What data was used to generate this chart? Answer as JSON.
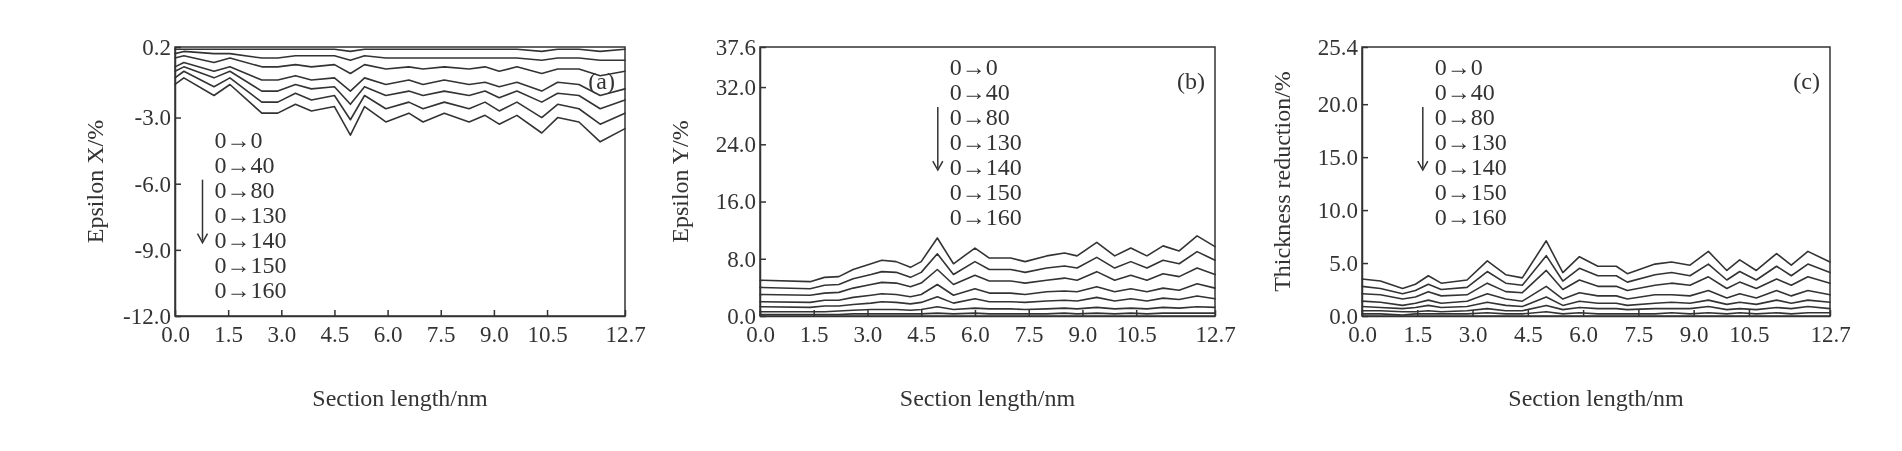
{
  "chart_data": [
    {
      "type": "line",
      "xlabel": "Section length/nm",
      "ylabel": "Epsilon X/%",
      "annotations": [
        "(a)",
        "0→0",
        "0→40",
        "0→80",
        "0→130",
        "0→140",
        "0→150",
        "0→160"
      ],
      "line_style": "solid",
      "x": [
        0,
        0.25,
        1.1,
        1.55,
        2.45,
        2.9,
        3.4,
        3.85,
        4.5,
        4.95,
        5.35,
        5.95,
        6.6,
        7.0,
        7.6,
        8.3,
        8.75,
        9.15,
        9.65,
        10.35,
        10.8,
        11.4,
        12.0,
        12.7
      ],
      "xlim": [
        0,
        12.7
      ],
      "xticks": [
        {
          "value": 0,
          "label": "0.0"
        },
        1.5,
        {
          "value": 3,
          "label": "3.0"
        },
        4.5,
        {
          "value": 6,
          "label": "6.0"
        },
        7.5,
        {
          "value": 9,
          "label": "9.0"
        },
        10.5,
        12.7
      ],
      "ylim": [
        -12,
        0.2
      ],
      "yticks": [
        0.2,
        {
          "value": -3,
          "label": "-3.0"
        },
        {
          "value": -6,
          "label": "-6.0"
        },
        {
          "value": -9,
          "label": "-9.0"
        },
        {
          "value": -12,
          "label": "-12.0"
        }
      ],
      "series": [
        {
          "color": "#333333",
          "values": [
            0.1,
            0.1,
            0.1,
            0.1,
            0.1,
            0.1,
            0.1,
            0.1,
            0.1,
            0.0,
            0.1,
            0.1,
            0.1,
            0.1,
            0.1,
            0.1,
            0.1,
            0.1,
            0.1,
            0.0,
            0.1,
            0.1,
            0.0,
            0.1
          ]
        },
        {
          "color": "#333333",
          "values": [
            -0.1,
            0.0,
            -0.1,
            -0.1,
            -0.3,
            -0.3,
            -0.2,
            -0.2,
            -0.2,
            -0.4,
            -0.2,
            -0.3,
            -0.3,
            -0.3,
            -0.3,
            -0.3,
            -0.3,
            -0.3,
            -0.3,
            -0.4,
            -0.3,
            -0.3,
            -0.4,
            -0.4
          ]
        },
        {
          "color": "#333333",
          "values": [
            -0.3,
            -0.2,
            -0.5,
            -0.3,
            -0.7,
            -0.7,
            -0.6,
            -0.7,
            -0.6,
            -1.0,
            -0.6,
            -0.8,
            -0.7,
            -0.8,
            -0.7,
            -0.8,
            -0.7,
            -0.9,
            -0.7,
            -1.0,
            -0.8,
            -0.8,
            -1.1,
            -0.9
          ]
        },
        {
          "color": "#333333",
          "values": [
            -0.7,
            -0.5,
            -0.9,
            -0.7,
            -1.3,
            -1.3,
            -1.1,
            -1.3,
            -1.2,
            -1.8,
            -1.2,
            -1.5,
            -1.3,
            -1.5,
            -1.3,
            -1.5,
            -1.4,
            -1.6,
            -1.4,
            -1.8,
            -1.4,
            -1.5,
            -2.0,
            -1.7
          ]
        },
        {
          "color": "#333333",
          "values": [
            -0.9,
            -0.7,
            -1.2,
            -0.9,
            -1.8,
            -1.8,
            -1.5,
            -1.7,
            -1.6,
            -2.4,
            -1.6,
            -2.0,
            -1.8,
            -2.0,
            -1.8,
            -2.0,
            -1.8,
            -2.1,
            -1.8,
            -2.3,
            -1.9,
            -2.0,
            -2.6,
            -2.2
          ]
        },
        {
          "color": "#333333",
          "values": [
            -1.2,
            -0.9,
            -1.6,
            -1.2,
            -2.3,
            -2.3,
            -1.9,
            -2.2,
            -2.0,
            -3.1,
            -2.0,
            -2.6,
            -2.3,
            -2.6,
            -2.3,
            -2.6,
            -2.3,
            -2.7,
            -2.3,
            -3.0,
            -2.4,
            -2.6,
            -3.3,
            -2.8
          ]
        },
        {
          "color": "#333333",
          "values": [
            -1.5,
            -1.2,
            -2.0,
            -1.5,
            -2.8,
            -2.8,
            -2.4,
            -2.7,
            -2.5,
            -3.8,
            -2.5,
            -3.2,
            -2.8,
            -3.2,
            -2.8,
            -3.2,
            -2.9,
            -3.3,
            -2.9,
            -3.7,
            -3.0,
            -3.2,
            -4.1,
            -3.5
          ]
        }
      ]
    },
    {
      "type": "line",
      "xlabel": "Section length/nm",
      "ylabel": "Epsilon Y/%",
      "annotations": [
        "(b)",
        "0→0",
        "0→40",
        "0→80",
        "0→130",
        "0→140",
        "0→150",
        "0→160"
      ],
      "line_style": "solid",
      "x": [
        0,
        1.4,
        1.8,
        2.2,
        2.6,
        3.1,
        3.4,
        3.8,
        4.2,
        4.5,
        4.95,
        5.4,
        6.0,
        6.4,
        7.0,
        7.4,
        8.0,
        8.5,
        8.85,
        9.4,
        9.9,
        10.35,
        10.8,
        11.25,
        11.7,
        12.2,
        12.7
      ],
      "xlim": [
        0,
        12.7
      ],
      "xticks": [
        {
          "value": 0,
          "label": "0.0"
        },
        1.5,
        {
          "value": 3,
          "label": "3.0"
        },
        4.5,
        {
          "value": 6,
          "label": "6.0"
        },
        7.5,
        {
          "value": 9,
          "label": "9.0"
        },
        10.5,
        12.7
      ],
      "ylim": [
        0,
        37.6
      ],
      "yticks": [
        {
          "value": 0,
          "label": "0.0"
        },
        {
          "value": 8,
          "label": "8.0"
        },
        {
          "value": 16,
          "label": "16.0"
        },
        {
          "value": 24,
          "label": "24.0"
        },
        {
          "value": 32,
          "label": "32.0"
        },
        37.6
      ],
      "series": [
        {
          "color": "#333333",
          "values": [
            0.2,
            0.2,
            0.2,
            0.2,
            0.3,
            0.3,
            0.3,
            0.3,
            0.3,
            0.3,
            0.4,
            0.3,
            0.4,
            0.3,
            0.3,
            0.3,
            0.3,
            0.4,
            0.3,
            0.4,
            0.3,
            0.4,
            0.3,
            0.4,
            0.4,
            0.4,
            0.4
          ]
        },
        {
          "color": "#333333",
          "values": [
            0.6,
            0.6,
            0.6,
            0.7,
            0.8,
            0.9,
            0.9,
            0.9,
            0.8,
            0.9,
            1.3,
            0.9,
            1.1,
            1.0,
            1.0,
            0.9,
            1.0,
            1.1,
            1.0,
            1.2,
            1.0,
            1.1,
            1.0,
            1.2,
            1.1,
            1.3,
            1.2
          ]
        },
        {
          "color": "#333333",
          "values": [
            1.3,
            1.2,
            1.4,
            1.4,
            1.6,
            1.8,
            2.0,
            1.9,
            1.7,
            1.9,
            2.7,
            1.8,
            2.4,
            2.0,
            2.0,
            1.9,
            2.1,
            2.2,
            2.1,
            2.6,
            2.1,
            2.4,
            2.1,
            2.5,
            2.3,
            2.8,
            2.4
          ]
        },
        {
          "color": "#333333",
          "values": [
            2.0,
            1.9,
            2.2,
            2.2,
            2.6,
            2.9,
            3.1,
            3.0,
            2.7,
            3.0,
            4.4,
            2.9,
            3.8,
            3.2,
            3.2,
            3.0,
            3.4,
            3.5,
            3.4,
            4.1,
            3.4,
            3.8,
            3.4,
            3.9,
            3.6,
            4.5,
            3.9
          ]
        },
        {
          "color": "#333333",
          "values": [
            3.0,
            2.9,
            3.2,
            3.3,
            3.9,
            4.4,
            4.7,
            4.6,
            4.1,
            4.6,
            6.5,
            4.4,
            5.7,
            4.9,
            4.9,
            4.6,
            5.0,
            5.3,
            5.0,
            6.2,
            5.0,
            5.7,
            5.0,
            5.9,
            5.5,
            6.7,
            5.8
          ]
        },
        {
          "color": "#333333",
          "values": [
            4.0,
            3.8,
            4.3,
            4.4,
            5.2,
            5.8,
            6.2,
            6.1,
            5.4,
            6.1,
            8.7,
            5.8,
            7.6,
            6.5,
            6.5,
            6.1,
            6.7,
            7.0,
            6.7,
            8.2,
            6.7,
            7.6,
            6.7,
            7.8,
            7.3,
            9.0,
            7.8
          ]
        },
        {
          "color": "#333333",
          "values": [
            5.0,
            4.8,
            5.4,
            5.5,
            6.5,
            7.3,
            7.8,
            7.6,
            6.8,
            7.6,
            10.9,
            7.3,
            9.5,
            8.1,
            8.1,
            7.6,
            8.4,
            8.8,
            8.4,
            10.3,
            8.4,
            9.5,
            8.4,
            9.8,
            9.1,
            11.2,
            9.7
          ]
        }
      ]
    },
    {
      "type": "line",
      "xlabel": "Section length/nm",
      "ylabel": "Thickness reduction/%",
      "annotations": [
        "(c)",
        "0→0",
        "0→40",
        "0→80",
        "0→130",
        "0→140",
        "0→150",
        "0→160"
      ],
      "line_style": "solid",
      "x": [
        0,
        0.5,
        1.1,
        1.45,
        1.8,
        2.15,
        2.85,
        3.4,
        3.9,
        4.35,
        5.0,
        5.45,
        5.9,
        6.4,
        6.9,
        7.2,
        7.95,
        8.4,
        8.9,
        9.4,
        9.9,
        10.25,
        10.7,
        11.25,
        11.65,
        12.1,
        12.7
      ],
      "xlim": [
        0,
        12.7
      ],
      "xticks": [
        {
          "value": 0,
          "label": "0.0"
        },
        1.5,
        {
          "value": 3,
          "label": "3.0"
        },
        4.5,
        {
          "value": 6,
          "label": "6.0"
        },
        7.5,
        {
          "value": 9,
          "label": "9.0"
        },
        10.5,
        12.7
      ],
      "ylim": [
        0,
        25.4
      ],
      "yticks": [
        {
          "value": 0,
          "label": "0.0"
        },
        {
          "value": 5,
          "label": "5.0"
        },
        {
          "value": 10,
          "label": "10.0"
        },
        {
          "value": 15,
          "label": "15.0"
        },
        {
          "value": 20,
          "label": "20.0"
        },
        25.4
      ],
      "series": [
        {
          "color": "#333333",
          "values": [
            0.2,
            0.2,
            0.1,
            0.2,
            0.2,
            0.2,
            0.2,
            0.3,
            0.2,
            0.2,
            0.4,
            0.2,
            0.3,
            0.2,
            0.2,
            0.2,
            0.2,
            0.3,
            0.2,
            0.3,
            0.2,
            0.3,
            0.2,
            0.3,
            0.2,
            0.3,
            0.3
          ]
        },
        {
          "color": "#333333",
          "values": [
            0.5,
            0.5,
            0.4,
            0.4,
            0.5,
            0.4,
            0.5,
            0.7,
            0.5,
            0.5,
            1.0,
            0.6,
            0.8,
            0.7,
            0.7,
            0.6,
            0.7,
            0.7,
            0.7,
            0.9,
            0.6,
            0.7,
            0.6,
            0.8,
            0.7,
            0.9,
            0.7
          ]
        },
        {
          "color": "#333333",
          "values": [
            0.9,
            0.8,
            0.7,
            0.8,
            1.0,
            0.8,
            0.9,
            1.3,
            1.0,
            0.9,
            1.8,
            1.0,
            1.4,
            1.2,
            1.2,
            1.0,
            1.2,
            1.3,
            1.2,
            1.5,
            1.1,
            1.3,
            1.1,
            1.5,
            1.2,
            1.5,
            1.3
          ]
        },
        {
          "color": "#333333",
          "values": [
            1.4,
            1.3,
            1.0,
            1.2,
            1.5,
            1.2,
            1.4,
            2.1,
            1.6,
            1.4,
            2.8,
            1.6,
            2.2,
            1.9,
            1.9,
            1.6,
            2.0,
            2.0,
            1.9,
            2.4,
            1.7,
            2.1,
            1.7,
            2.4,
            1.9,
            2.4,
            2.0
          ]
        },
        {
          "color": "#333333",
          "values": [
            2.1,
            2.0,
            1.6,
            1.8,
            2.3,
            1.9,
            2.0,
            3.1,
            2.3,
            2.2,
            4.3,
            2.5,
            3.4,
            2.8,
            2.8,
            2.4,
            2.9,
            3.1,
            2.9,
            3.7,
            2.6,
            3.2,
            2.6,
            3.5,
            2.9,
            3.7,
            3.1
          ]
        },
        {
          "color": "#333333",
          "values": [
            2.8,
            2.6,
            2.1,
            2.4,
            3.0,
            2.5,
            2.7,
            4.2,
            3.1,
            2.9,
            5.7,
            3.3,
            4.5,
            3.8,
            3.8,
            3.2,
            3.9,
            4.1,
            3.8,
            4.9,
            3.4,
            4.2,
            3.4,
            4.7,
            3.8,
            4.9,
            4.1
          ]
        },
        {
          "color": "#333333",
          "values": [
            3.5,
            3.3,
            2.6,
            3.0,
            3.8,
            3.1,
            3.4,
            5.2,
            3.9,
            3.6,
            7.1,
            4.1,
            5.6,
            4.7,
            4.7,
            4.0,
            4.9,
            5.1,
            4.8,
            6.1,
            4.3,
            5.3,
            4.3,
            5.9,
            4.8,
            6.1,
            5.1
          ]
        }
      ]
    }
  ]
}
